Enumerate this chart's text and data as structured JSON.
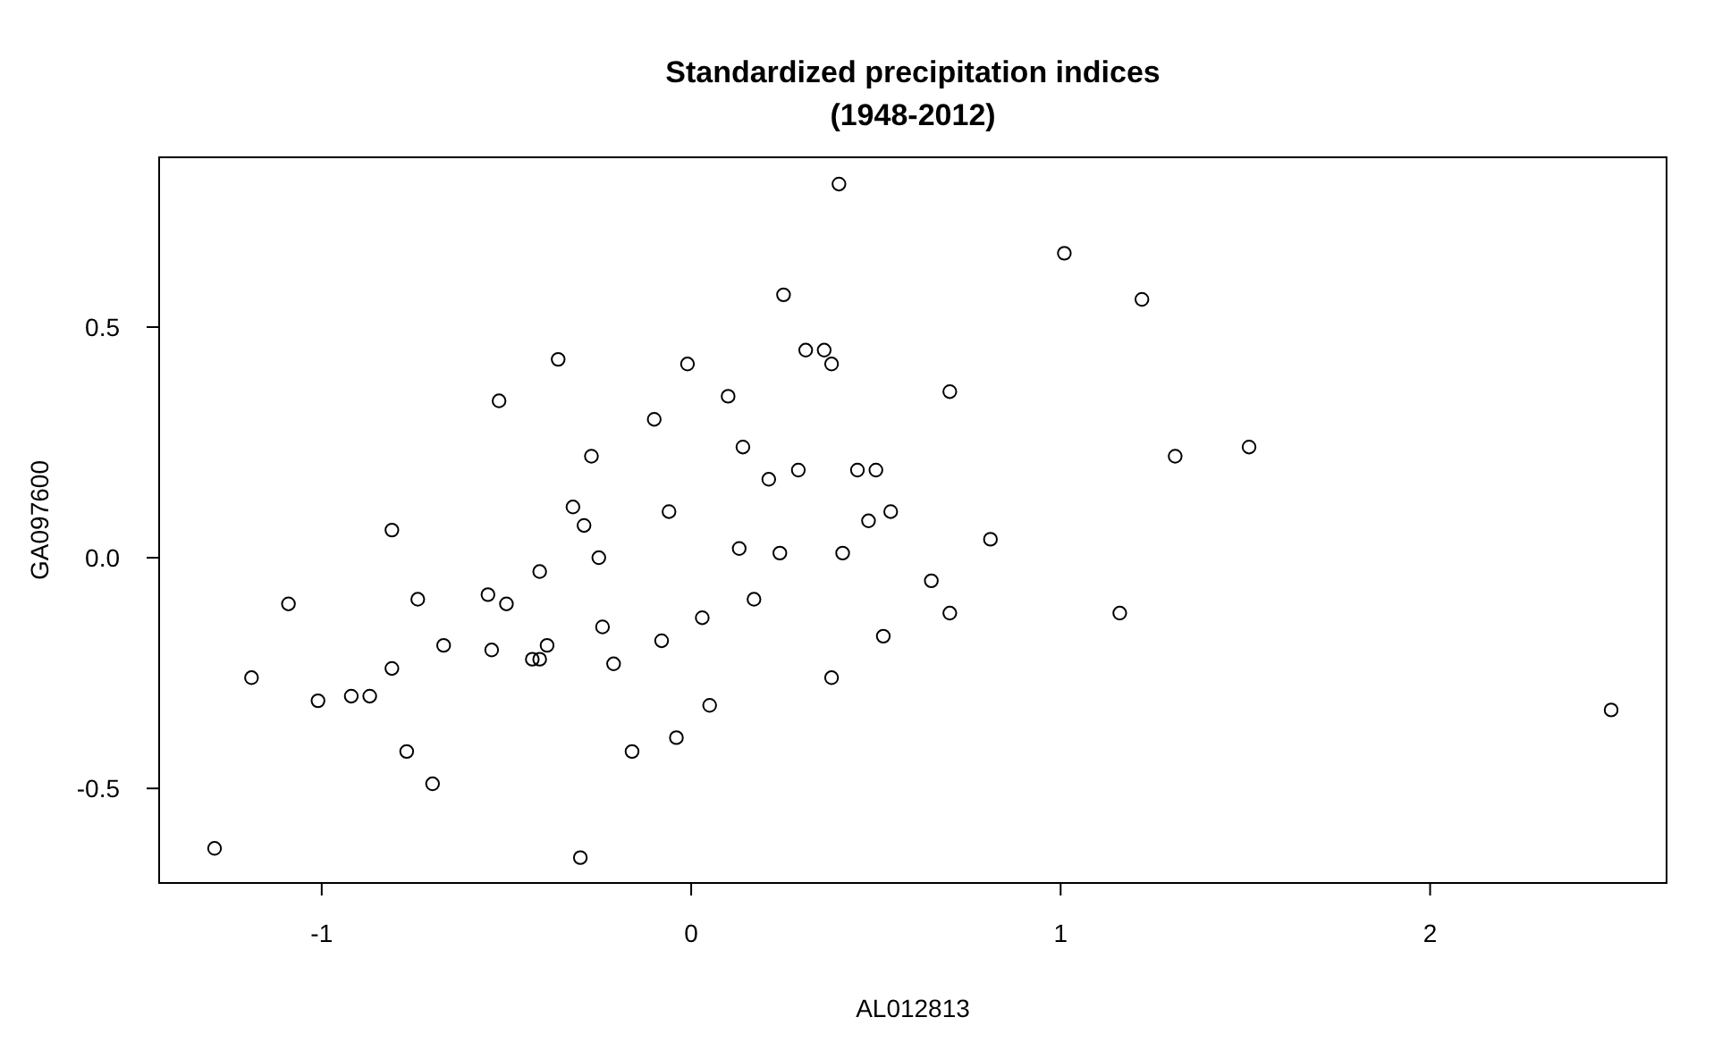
{
  "chart_data": {
    "type": "scatter",
    "title": "Standardized precipitation indices",
    "subtitle": "(1948-2012)",
    "xlabel": "AL012813",
    "ylabel": "GA097600",
    "xlim": [
      -1.44,
      2.64
    ],
    "ylim": [
      -0.705,
      0.868
    ],
    "xticks": [
      -1,
      0,
      1,
      2
    ],
    "yticks": [
      {
        "value": -0.5,
        "label": "-0.5"
      },
      {
        "value": 0,
        "label": "0.0"
      },
      {
        "value": 0.5,
        "label": "0.5"
      }
    ],
    "grid": false,
    "marker": "circle",
    "series": [
      {
        "color": "#000000",
        "x": [
          -1.29,
          -1.19,
          -1.09,
          -1.01,
          -0.92,
          -0.87,
          -0.81,
          -0.81,
          -0.77,
          -0.74,
          -0.7,
          -0.67,
          -0.55,
          -0.54,
          -0.52,
          -0.5,
          -0.43,
          -0.41,
          -0.41,
          -0.39,
          -0.36,
          -0.32,
          -0.3,
          -0.29,
          -0.27,
          -0.25,
          -0.24,
          -0.21,
          -0.16,
          -0.1,
          -0.08,
          -0.06,
          -0.04,
          -0.01,
          0.03,
          0.05,
          0.1,
          0.13,
          0.14,
          0.17,
          0.21,
          0.24,
          0.25,
          0.29,
          0.31,
          0.36,
          0.38,
          0.38,
          0.4,
          0.41,
          0.45,
          0.48,
          0.5,
          0.52,
          0.54,
          0.65,
          0.7,
          0.7,
          0.81,
          1.01,
          1.16,
          1.22,
          1.31,
          1.51,
          2.49
        ],
        "values": [
          -0.63,
          -0.26,
          -0.1,
          -0.31,
          -0.3,
          -0.3,
          0.06,
          -0.24,
          -0.42,
          -0.09,
          -0.49,
          -0.19,
          -0.08,
          -0.2,
          0.34,
          -0.1,
          -0.22,
          -0.22,
          -0.03,
          -0.19,
          0.43,
          0.11,
          -0.65,
          0.07,
          0.22,
          0.0,
          -0.15,
          -0.23,
          -0.42,
          0.3,
          -0.18,
          0.1,
          -0.39,
          0.42,
          -0.13,
          -0.32,
          0.35,
          0.02,
          0.24,
          -0.09,
          0.17,
          0.01,
          0.57,
          0.19,
          0.45,
          0.45,
          0.42,
          -0.26,
          0.81,
          0.01,
          0.19,
          0.08,
          0.19,
          -0.17,
          0.1,
          -0.05,
          0.36,
          -0.12,
          0.04,
          0.66,
          -0.12,
          0.56,
          0.22,
          0.24,
          -0.33
        ]
      }
    ]
  }
}
